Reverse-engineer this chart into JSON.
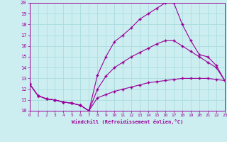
{
  "bg_color": "#cceef0",
  "grid_color": "#aadddf",
  "line_color": "#990099",
  "marker": "+",
  "xlabel": "Windchill (Refroidissement éolien,°C)",
  "xlim": [
    0,
    23
  ],
  "ylim": [
    10,
    20
  ],
  "lines": [
    {
      "x": [
        0,
        1,
        2,
        3,
        4,
        5,
        6,
        7,
        8,
        9,
        10,
        11,
        12,
        13,
        14,
        15,
        16,
        17,
        18,
        19,
        20,
        21,
        22,
        23
      ],
      "y": [
        12.5,
        11.4,
        11.1,
        11.0,
        10.8,
        10.7,
        10.5,
        10.0,
        11.2,
        11.5,
        11.8,
        12.0,
        12.2,
        12.4,
        12.6,
        12.7,
        12.8,
        12.9,
        13.0,
        13.0,
        13.0,
        13.0,
        12.9,
        12.8
      ]
    },
    {
      "x": [
        0,
        1,
        2,
        3,
        4,
        5,
        6,
        7,
        8,
        9,
        10,
        11,
        12,
        13,
        14,
        15,
        16,
        17,
        18,
        19,
        20,
        21,
        22,
        23
      ],
      "y": [
        12.5,
        11.4,
        11.1,
        11.0,
        10.8,
        10.7,
        10.5,
        10.0,
        12.0,
        13.2,
        14.0,
        14.5,
        15.0,
        15.4,
        15.8,
        16.2,
        16.5,
        16.5,
        16.0,
        15.5,
        15.0,
        14.5,
        14.0,
        12.8
      ]
    },
    {
      "x": [
        0,
        1,
        2,
        3,
        4,
        5,
        6,
        7,
        8,
        9,
        10,
        11,
        12,
        13,
        14,
        15,
        16,
        17,
        18,
        19,
        20,
        21,
        22,
        23
      ],
      "y": [
        12.5,
        11.4,
        11.1,
        11.0,
        10.8,
        10.7,
        10.5,
        10.0,
        13.3,
        15.0,
        16.4,
        17.0,
        17.7,
        18.5,
        19.0,
        19.5,
        20.0,
        20.0,
        18.0,
        16.5,
        15.2,
        15.0,
        14.2,
        12.8
      ]
    }
  ]
}
